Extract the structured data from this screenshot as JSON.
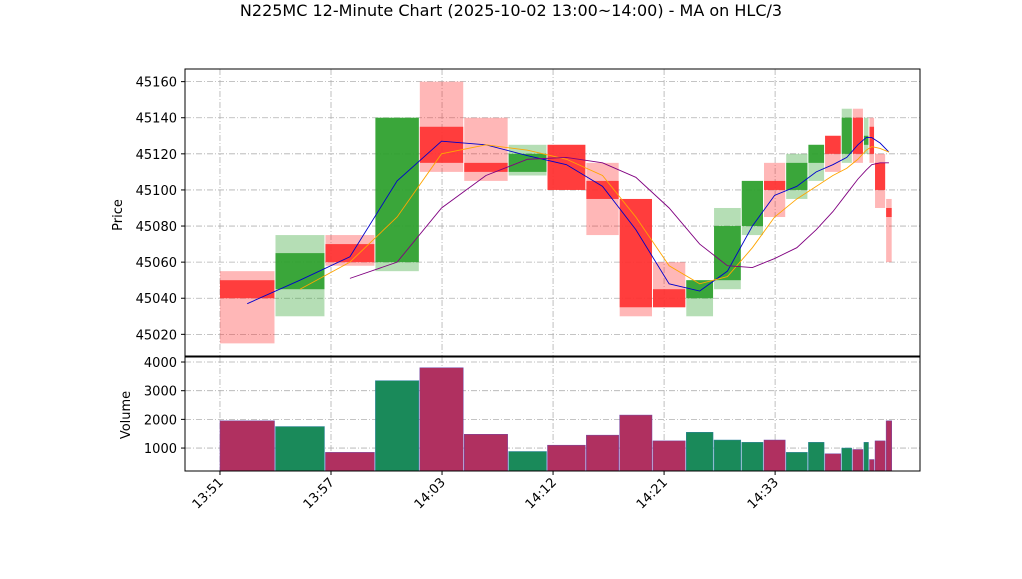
{
  "chart_data": {
    "type": "candlestick",
    "title": "N225MC 12-Minute Chart (2025-10-02 13:00~14:00) - MA on HLC/3",
    "ylabel": "Price",
    "volume_label": "Volume",
    "x": [
      0,
      10,
      19,
      28,
      36,
      44,
      52,
      59,
      66,
      72,
      78,
      84,
      89,
      94,
      98,
      102,
      106,
      109,
      112,
      114,
      116,
      117,
      118,
      120
    ],
    "open": [
      45050,
      45045,
      45070,
      45060,
      45135,
      45115,
      45110,
      45125,
      45105,
      45095,
      45045,
      45040,
      45050,
      45080,
      45105,
      45100,
      45115,
      45130,
      45120,
      45140,
      45125,
      45135,
      45115,
      45090
    ],
    "high": [
      45055,
      45075,
      45075,
      45140,
      45160,
      45140,
      45125,
      45125,
      45115,
      45095,
      45060,
      45050,
      45090,
      45105,
      45115,
      45120,
      45125,
      45130,
      45145,
      45145,
      45140,
      45140,
      45120,
      45095
    ],
    "low": [
      45015,
      45030,
      45058,
      45055,
      45110,
      45105,
      45108,
      45100,
      45075,
      45030,
      45035,
      45030,
      45045,
      45075,
      45085,
      45095,
      45105,
      45110,
      45115,
      45115,
      45120,
      45115,
      45090,
      45060
    ],
    "close": [
      45040,
      45065,
      45060,
      45140,
      45115,
      45110,
      45120,
      45100,
      45095,
      45035,
      45035,
      45050,
      45080,
      45105,
      45100,
      45115,
      45125,
      45120,
      45140,
      45120,
      45130,
      45120,
      45100,
      45085
    ],
    "volume": [
      1950,
      1750,
      850,
      3350,
      3800,
      1480,
      880,
      1100,
      1450,
      2150,
      1250,
      1550,
      1280,
      1200,
      1280,
      850,
      1200,
      800,
      1000,
      950,
      1200,
      600,
      1250,
      1950
    ],
    "up_color": "#2ca02c",
    "down_color": "#ff3030",
    "ma": [
      {
        "color": "#0000cc",
        "values": [
          45037,
          45050,
          45063,
          45105,
          45127,
          45125,
          45119,
          45114,
          45102,
          45078,
          45048,
          45044,
          45055,
          45080,
          45097,
          45102,
          45110,
          45114,
          45118,
          45125,
          45129,
          45129,
          45126,
          45121
        ]
      },
      {
        "color": "#ffa500",
        "values": [
          null,
          45045,
          45060,
          45085,
          45120,
          45125,
          45122,
          45117,
          45108,
          45085,
          45058,
          45048,
          45052,
          45068,
          45085,
          45095,
          45102,
          45108,
          45112,
          45117,
          45122,
          45124,
          45123,
          45121
        ]
      },
      {
        "color": "#800080",
        "values": [
          null,
          null,
          45051,
          45060,
          45090,
          45108,
          45117,
          45118,
          45115,
          45107,
          45090,
          45070,
          45058,
          45057,
          45062,
          45068,
          45078,
          45088,
          45098,
          45106,
          45111,
          45114,
          45115,
          45115
        ]
      }
    ],
    "xlim": [
      -6.3,
      126.1
    ],
    "xticks": [
      {
        "value": 0,
        "label": "13:51"
      },
      {
        "value": 20,
        "label": "13:57"
      },
      {
        "value": 40,
        "label": "14:03"
      },
      {
        "value": 60,
        "label": "14:12"
      },
      {
        "value": 80,
        "label": "14:21"
      },
      {
        "value": 100,
        "label": "14:33"
      }
    ],
    "ylim": [
      45008,
      45167
    ],
    "yticks": [
      45020,
      45040,
      45060,
      45080,
      45100,
      45120,
      45140,
      45160
    ],
    "vlim": [
      200,
      4175
    ],
    "vticks": [
      1000,
      2000,
      3000,
      4000
    ],
    "grid": true
  }
}
